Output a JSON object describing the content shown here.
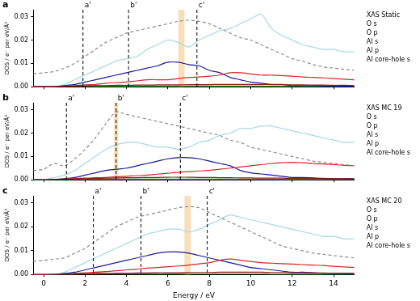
{
  "chart_data": [
    {
      "type": "line",
      "title": "a",
      "y_label": "DOS / e⁻ per eV/Å³",
      "tick_labels": "y",
      "legend": "right",
      "xlim": [
        -0.5,
        15
      ],
      "xticks": [
        0,
        2,
        4,
        6,
        8,
        10,
        12,
        14
      ],
      "ylim": [
        0,
        0.033
      ],
      "yticks": [
        {
          "value": 0,
          "label": "0.00"
        },
        {
          "value": 0.01,
          "label": "0.01"
        },
        {
          "value": 0.02,
          "label": "0.02"
        },
        {
          "value": 0.03,
          "label": "0.03"
        }
      ],
      "x": [
        -0.5,
        0,
        0.5,
        1,
        1.5,
        2,
        2.5,
        3,
        3.5,
        4,
        4.5,
        5,
        5.5,
        6,
        6.5,
        7,
        7.5,
        8,
        8.5,
        9,
        9.5,
        10,
        10.5,
        11,
        11.5,
        12,
        12.5,
        13,
        13.5,
        14,
        14.5,
        15
      ],
      "series": [
        {
          "name": "XAS Static",
          "color": "#8c8c8c",
          "line_style": "dashed",
          "values": [
            0.0055,
            0.006,
            0.0065,
            0.008,
            0.01,
            0.013,
            0.016,
            0.019,
            0.021,
            0.023,
            0.024,
            0.025,
            0.026,
            0.027,
            0.028,
            0.0285,
            0.028,
            0.027,
            0.025,
            0.023,
            0.021,
            0.02,
            0.018,
            0.016,
            0.014,
            0.012,
            0.011,
            0.0095,
            0.0085,
            0.008,
            0.0075,
            0.007
          ]
        },
        {
          "name": "O s",
          "color": "#8b1a1a",
          "values": [
            0,
            0,
            0.0001,
            0.0002,
            0.0003,
            0.0004,
            0.0005,
            0.0005,
            0.0006,
            0.0006,
            0.0007,
            0.0007,
            0.0008,
            0.0008,
            0.0008,
            0.0009,
            0.0009,
            0.0009,
            0.001,
            0.001,
            0.001,
            0.001,
            0.001,
            0.0009,
            0.0009,
            0.0008,
            0.0008,
            0.0007,
            0.0007,
            0.0006,
            0.0006,
            0.0005
          ]
        },
        {
          "name": "O p",
          "color": "#d62728",
          "values": [
            0,
            0,
            0.0001,
            0.0003,
            0.0005,
            0.0008,
            0.001,
            0.0015,
            0.0018,
            0.002,
            0.0025,
            0.003,
            0.003,
            0.003,
            0.0035,
            0.004,
            0.0042,
            0.0045,
            0.005,
            0.006,
            0.006,
            0.0055,
            0.005,
            0.005,
            0.0048,
            0.0045,
            0.0042,
            0.004,
            0.0038,
            0.0035,
            0.0032,
            0.003
          ]
        },
        {
          "name": "Al s",
          "color": "#1a1a9e",
          "values": [
            0,
            0,
            0,
            0.0005,
            0.001,
            0.002,
            0.003,
            0.004,
            0.005,
            0.006,
            0.007,
            0.008,
            0.009,
            0.0105,
            0.0105,
            0.0095,
            0.009,
            0.007,
            0.006,
            0.004,
            0.003,
            0.002,
            0.0015,
            0.001,
            0.001,
            0.0005,
            0.0005,
            0.0005,
            0.0004,
            0.0004,
            0.0003,
            0.0003
          ]
        },
        {
          "name": "Al p",
          "color": "#a6d8e8",
          "values": [
            0,
            0,
            0,
            0.001,
            0.003,
            0.005,
            0.007,
            0.009,
            0.011,
            0.012,
            0.013,
            0.016,
            0.018,
            0.02,
            0.019,
            0.017,
            0.02,
            0.022,
            0.024,
            0.025,
            0.027,
            0.029,
            0.031,
            0.025,
            0.022,
            0.02,
            0.018,
            0.017,
            0.016,
            0.016,
            0.015,
            0.015
          ]
        },
        {
          "name": "Al core-hole s",
          "color": "#2ca02c",
          "values": [
            0,
            0,
            0.0001,
            0.0002,
            0.0002,
            0.0003,
            0.0003,
            0.0003,
            0.0003,
            0.0003,
            0.0003,
            0.0003,
            0.0003,
            0.0003,
            0.0003,
            0.0003,
            0.0003,
            0.0003,
            0.0003,
            0.0003,
            0.0003,
            0.0003,
            0.0003,
            0.0002,
            0.0002,
            0.0002,
            0.0002,
            0.0002,
            0.0002,
            0.0002,
            0.0002,
            0.0002
          ]
        }
      ],
      "annotations": [
        {
          "type": "band",
          "x": [
            6.5,
            6.8
          ]
        },
        {
          "type": "vline",
          "x": 1.9,
          "label": "a'"
        },
        {
          "type": "vline",
          "x": 4.1,
          "label": "b'"
        },
        {
          "type": "vline",
          "x": 7.4,
          "label": "c'"
        }
      ]
    },
    {
      "type": "line",
      "title": "b",
      "y_label": "DOS / e⁻ per eV/Å³",
      "tick_labels": "y",
      "legend": "right",
      "xlim": [
        -0.5,
        15
      ],
      "xticks": [
        0,
        2,
        4,
        6,
        8,
        10,
        12,
        14
      ],
      "ylim": [
        0,
        0.033
      ],
      "yticks": [
        {
          "value": 0,
          "label": "0.00"
        },
        {
          "value": 0.01,
          "label": "0.01"
        },
        {
          "value": 0.02,
          "label": "0.02"
        },
        {
          "value": 0.03,
          "label": "0.03"
        }
      ],
      "x": [
        -0.5,
        0,
        0.5,
        1,
        1.5,
        2,
        2.5,
        3,
        3.5,
        4,
        4.5,
        5,
        5.5,
        6,
        6.5,
        7,
        7.5,
        8,
        8.5,
        9,
        9.5,
        10,
        10.5,
        11,
        11.5,
        12,
        12.5,
        13,
        13.5,
        14,
        14.5,
        15
      ],
      "series": [
        {
          "name": "XAS MC 19",
          "color": "#8c8c8c",
          "line_style": "dashed",
          "values": [
            0.004,
            0.0045,
            0.007,
            0.006,
            0.009,
            0.013,
            0.018,
            0.024,
            0.029,
            0.028,
            0.027,
            0.026,
            0.025,
            0.024,
            0.023,
            0.022,
            0.021,
            0.02,
            0.019,
            0.017,
            0.016,
            0.014,
            0.013,
            0.012,
            0.011,
            0.01,
            0.009,
            0.008,
            0.0075,
            0.007,
            0.0065,
            0.006
          ]
        },
        {
          "name": "O s",
          "color": "#8b1a1a",
          "values": [
            0,
            0,
            0.0002,
            0.0003,
            0.0004,
            0.0005,
            0.0006,
            0.0007,
            0.0008,
            0.0009,
            0.0009,
            0.001,
            0.001,
            0.0011,
            0.0011,
            0.0011,
            0.001,
            0.001,
            0.0009,
            0.0009,
            0.0008,
            0.0008,
            0.0007,
            0.0007,
            0.0007,
            0.0006,
            0.0006,
            0.0006,
            0.0005,
            0.0005,
            0.0005,
            0.0005
          ]
        },
        {
          "name": "O p",
          "color": "#d62728",
          "values": [
            0,
            0,
            0.0002,
            0.0003,
            0.0005,
            0.0007,
            0.0009,
            0.001,
            0.0013,
            0.0015,
            0.0018,
            0.002,
            0.0024,
            0.0028,
            0.0032,
            0.0035,
            0.0038,
            0.004,
            0.0045,
            0.005,
            0.0055,
            0.006,
            0.0065,
            0.007,
            0.0073,
            0.0075,
            0.0073,
            0.007,
            0.0068,
            0.0065,
            0.0062,
            0.006
          ]
        },
        {
          "name": "Al s",
          "color": "#1a1a9e",
          "values": [
            0,
            0,
            0.0002,
            0.0005,
            0.001,
            0.002,
            0.003,
            0.004,
            0.0045,
            0.005,
            0.006,
            0.007,
            0.008,
            0.009,
            0.0095,
            0.0095,
            0.009,
            0.008,
            0.007,
            0.006,
            0.004,
            0.003,
            0.0025,
            0.002,
            0.0015,
            0.001,
            0.001,
            0.0008,
            0.0006,
            0.0005,
            0.0005,
            0.0004
          ]
        },
        {
          "name": "Al p",
          "color": "#a6d8e8",
          "values": [
            0,
            0,
            0.001,
            0.002,
            0.004,
            0.007,
            0.01,
            0.013,
            0.015,
            0.016,
            0.016,
            0.015,
            0.014,
            0.014,
            0.013,
            0.014,
            0.016,
            0.017,
            0.019,
            0.02,
            0.022,
            0.022,
            0.023,
            0.023,
            0.022,
            0.021,
            0.02,
            0.019,
            0.018,
            0.017,
            0.016,
            0.016
          ]
        },
        {
          "name": "Al core-hole s",
          "color": "#2ca02c",
          "values": [
            0,
            0,
            0.0001,
            0.0002,
            0.0002,
            0.0003,
            0.0003,
            0.0003,
            0.0003,
            0.0003,
            0.0003,
            0.0003,
            0.0003,
            0.0003,
            0.0003,
            0.0003,
            0.0003,
            0.0003,
            0.0003,
            0.0003,
            0.0003,
            0.0003,
            0.0003,
            0.0002,
            0.0002,
            0.0002,
            0.0002,
            0.0002,
            0.0002,
            0.0002,
            0.0002,
            0.0002
          ]
        }
      ],
      "annotations": [
        {
          "type": "band",
          "x": [
            3.4,
            3.6
          ]
        },
        {
          "type": "vline",
          "x": 1.1,
          "label": "a'"
        },
        {
          "type": "vline",
          "x": 3.5,
          "label": "b'"
        },
        {
          "type": "vline",
          "x": 6.6,
          "label": "c'"
        }
      ]
    },
    {
      "type": "line",
      "title": "c",
      "x_label": "Energy / eV",
      "y_label": "DOS / e⁻ per eV/Å³",
      "legend": "right",
      "xlim": [
        -0.5,
        15
      ],
      "xticks": [
        0,
        2,
        4,
        6,
        8,
        10,
        12,
        14
      ],
      "ylim": [
        0,
        0.033
      ],
      "yticks": [
        {
          "value": 0,
          "label": "0.00"
        },
        {
          "value": 0.01,
          "label": "0.01"
        },
        {
          "value": 0.02,
          "label": "0.02"
        },
        {
          "value": 0.03,
          "label": "0.03"
        }
      ],
      "x": [
        -0.5,
        0,
        0.5,
        1,
        1.5,
        2,
        2.5,
        3,
        3.5,
        4,
        4.5,
        5,
        5.5,
        6,
        6.5,
        7,
        7.5,
        8,
        8.5,
        9,
        9.5,
        10,
        10.5,
        11,
        11.5,
        12,
        12.5,
        13,
        13.5,
        14,
        14.5,
        15
      ],
      "series": [
        {
          "name": "XAS MC 20",
          "color": "#8c8c8c",
          "line_style": "dashed",
          "values": [
            0.0055,
            0.006,
            0.0065,
            0.007,
            0.009,
            0.011,
            0.014,
            0.017,
            0.02,
            0.022,
            0.024,
            0.025,
            0.026,
            0.027,
            0.028,
            0.0285,
            0.028,
            0.026,
            0.024,
            0.022,
            0.02,
            0.018,
            0.016,
            0.014,
            0.012,
            0.011,
            0.01,
            0.009,
            0.0085,
            0.008,
            0.0075,
            0.007
          ]
        },
        {
          "name": "O s",
          "color": "#8b1a1a",
          "values": [
            0,
            0,
            0.0001,
            0.0002,
            0.0003,
            0.0004,
            0.0005,
            0.0005,
            0.0006,
            0.0006,
            0.0007,
            0.0007,
            0.0008,
            0.0008,
            0.0008,
            0.0009,
            0.0009,
            0.0009,
            0.001,
            0.001,
            0.001,
            0.001,
            0.001,
            0.0009,
            0.0009,
            0.0008,
            0.0008,
            0.0007,
            0.0007,
            0.0006,
            0.0006,
            0.0005
          ]
        },
        {
          "name": "O p",
          "color": "#d62728",
          "values": [
            0,
            0,
            0.0001,
            0.0003,
            0.0005,
            0.0008,
            0.001,
            0.0013,
            0.0016,
            0.002,
            0.0023,
            0.0027,
            0.003,
            0.0033,
            0.0036,
            0.004,
            0.0045,
            0.005,
            0.006,
            0.0065,
            0.006,
            0.0055,
            0.005,
            0.0048,
            0.0046,
            0.0044,
            0.0042,
            0.004,
            0.0038,
            0.0035,
            0.0032,
            0.003
          ]
        },
        {
          "name": "Al s",
          "color": "#1a1a9e",
          "values": [
            0,
            0,
            0,
            0.0005,
            0.001,
            0.002,
            0.003,
            0.004,
            0.005,
            0.006,
            0.007,
            0.008,
            0.009,
            0.0095,
            0.0095,
            0.009,
            0.008,
            0.007,
            0.006,
            0.005,
            0.004,
            0.003,
            0.0025,
            0.002,
            0.0015,
            0.001,
            0.001,
            0.0008,
            0.0006,
            0.0005,
            0.0005,
            0.0004
          ]
        },
        {
          "name": "Al p",
          "color": "#a6d8e8",
          "values": [
            0,
            0,
            0,
            0.001,
            0.003,
            0.005,
            0.007,
            0.009,
            0.011,
            0.013,
            0.015,
            0.017,
            0.018,
            0.019,
            0.019,
            0.018,
            0.019,
            0.021,
            0.023,
            0.025,
            0.024,
            0.023,
            0.022,
            0.021,
            0.02,
            0.019,
            0.018,
            0.017,
            0.016,
            0.016,
            0.015,
            0.015
          ]
        },
        {
          "name": "Al core-hole s",
          "color": "#2ca02c",
          "values": [
            0,
            0,
            0.0001,
            0.0002,
            0.0002,
            0.0003,
            0.0003,
            0.0003,
            0.0003,
            0.0003,
            0.0003,
            0.0003,
            0.0003,
            0.0003,
            0.0003,
            0.0003,
            0.0003,
            0.0003,
            0.0003,
            0.0003,
            0.0003,
            0.0003,
            0.0003,
            0.0002,
            0.0002,
            0.0002,
            0.0002,
            0.0002,
            0.0002,
            0.0002,
            0.0002,
            0.0002
          ]
        }
      ],
      "annotations": [
        {
          "type": "band",
          "x": [
            6.8,
            7.1
          ]
        },
        {
          "type": "vline",
          "x": 2.4,
          "label": "a'"
        },
        {
          "type": "vline",
          "x": 4.7,
          "label": "b'"
        },
        {
          "type": "vline",
          "x": 7.9,
          "label": "c'"
        }
      ]
    }
  ]
}
